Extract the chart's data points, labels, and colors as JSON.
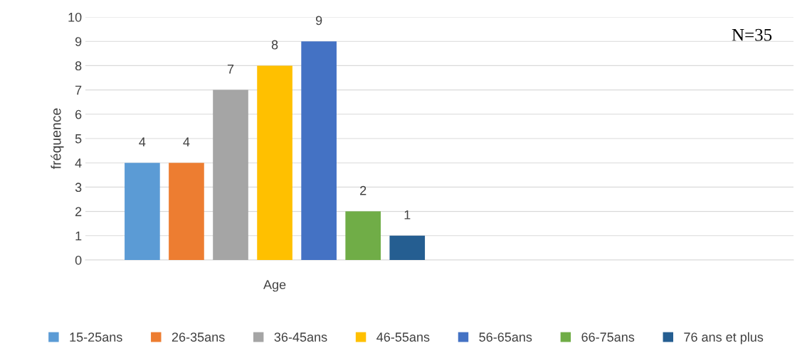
{
  "chart_data": {
    "type": "bar",
    "ylabel": "fréquence",
    "categories": [
      "Age"
    ],
    "series": [
      {
        "name": "15-25ans",
        "color": "#5b9bd5",
        "values": [
          4
        ]
      },
      {
        "name": "26-35ans",
        "color": "#ed7d31",
        "values": [
          4
        ]
      },
      {
        "name": "36-45ans",
        "color": "#a5a5a5",
        "values": [
          7
        ]
      },
      {
        "name": "46-55ans",
        "color": "#ffc000",
        "values": [
          8
        ]
      },
      {
        "name": "56-65ans",
        "color": "#4472c4",
        "values": [
          9
        ]
      },
      {
        "name": "66-75ans",
        "color": "#70ad47",
        "values": [
          2
        ]
      },
      {
        "name": "76 ans et plus",
        "color": "#255e91",
        "values": [
          1
        ]
      }
    ],
    "ylim": [
      0,
      10
    ],
    "yticks": [
      0,
      1,
      2,
      3,
      4,
      5,
      6,
      7,
      8,
      9,
      10
    ],
    "grid": "y",
    "legend": "bottom",
    "data_labels": true,
    "annotations": [
      "N=35"
    ]
  }
}
